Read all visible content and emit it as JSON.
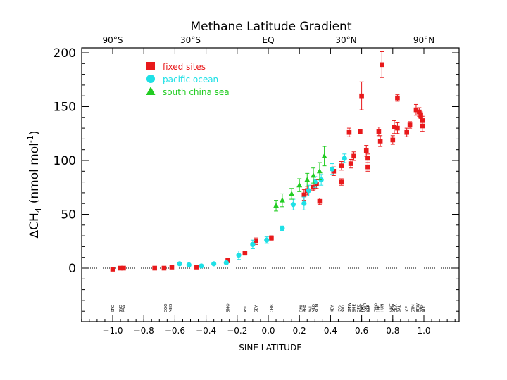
{
  "chart_data": {
    "type": "scatter",
    "title": "Methane Latitude Gradient",
    "xlabel": "SINE LATITUDE",
    "ylabel_main": "ΔCH",
    "ylabel_sub": "4",
    "ylabel_unit": "(nmol mol",
    "ylabel_exp": "-1",
    "ylabel_close": ")",
    "xlim": [
      -1.2,
      1.2
    ],
    "ylim": [
      -50,
      200
    ],
    "x_ticks": [
      {
        "value": -1.0,
        "label": "−1.0"
      },
      {
        "value": -0.8,
        "label": "−0.8"
      },
      {
        "value": -0.6,
        "label": "−0.6"
      },
      {
        "value": -0.4,
        "label": "−0.4"
      },
      {
        "value": -0.2,
        "label": "−0.2"
      },
      {
        "value": 0.0,
        "label": "0.0"
      },
      {
        "value": 0.2,
        "label": "0.2"
      },
      {
        "value": 0.4,
        "label": "0.4"
      },
      {
        "value": 0.6,
        "label": "0.6"
      },
      {
        "value": 0.8,
        "label": "0.8"
      },
      {
        "value": 1.0,
        "label": "1.0"
      }
    ],
    "y_ticks": [
      {
        "value": 0,
        "label": "0"
      },
      {
        "value": 50,
        "label": "50"
      },
      {
        "value": 100,
        "label": "100"
      },
      {
        "value": 150,
        "label": "150"
      },
      {
        "value": 200,
        "label": "200"
      }
    ],
    "top_ticks": [
      {
        "value": -1.0,
        "label": "90°S"
      },
      {
        "value": -0.5,
        "label": "30°S"
      },
      {
        "value": 0.0,
        "label": "EQ"
      },
      {
        "value": 0.5,
        "label": "30°N"
      },
      {
        "value": 1.0,
        "label": "90°N"
      }
    ],
    "zero_line": true,
    "legend_position": "top-left",
    "series": [
      {
        "name": "fixed sites",
        "marker": "square",
        "color": "#e8191b",
        "points": [
          {
            "x": -1.0,
            "y": -1,
            "err": 0
          },
          {
            "x": -0.95,
            "y": 0,
            "err": 0
          },
          {
            "x": -0.93,
            "y": 0,
            "err": 0
          },
          {
            "x": -0.73,
            "y": 0,
            "err": 0
          },
          {
            "x": -0.67,
            "y": 0,
            "err": 0
          },
          {
            "x": -0.62,
            "y": 1,
            "err": 0
          },
          {
            "x": -0.46,
            "y": 1,
            "err": 0
          },
          {
            "x": -0.26,
            "y": 7,
            "err": 2
          },
          {
            "x": -0.15,
            "y": 14,
            "err": 2
          },
          {
            "x": -0.08,
            "y": 25,
            "err": 3
          },
          {
            "x": 0.02,
            "y": 28,
            "err": 2
          },
          {
            "x": 0.23,
            "y": 68,
            "err": 5
          },
          {
            "x": 0.25,
            "y": 72,
            "err": 4
          },
          {
            "x": 0.29,
            "y": 75,
            "err": 3
          },
          {
            "x": 0.31,
            "y": 78,
            "err": 4
          },
          {
            "x": 0.33,
            "y": 62,
            "err": 3
          },
          {
            "x": 0.42,
            "y": 90,
            "err": 4
          },
          {
            "x": 0.47,
            "y": 80,
            "err": 3
          },
          {
            "x": 0.47,
            "y": 95,
            "err": 4
          },
          {
            "x": 0.52,
            "y": 126,
            "err": 4
          },
          {
            "x": 0.53,
            "y": 97,
            "err": 4
          },
          {
            "x": 0.55,
            "y": 104,
            "err": 4
          },
          {
            "x": 0.59,
            "y": 127,
            "err": 2
          },
          {
            "x": 0.6,
            "y": 160,
            "err": 13
          },
          {
            "x": 0.63,
            "y": 109,
            "err": 5
          },
          {
            "x": 0.64,
            "y": 102,
            "err": 4
          },
          {
            "x": 0.64,
            "y": 94,
            "err": 4
          },
          {
            "x": 0.71,
            "y": 127,
            "err": 4
          },
          {
            "x": 0.72,
            "y": 118,
            "err": 5
          },
          {
            "x": 0.73,
            "y": 189,
            "err": 12
          },
          {
            "x": 0.8,
            "y": 119,
            "err": 4
          },
          {
            "x": 0.81,
            "y": 131,
            "err": 6
          },
          {
            "x": 0.83,
            "y": 130,
            "err": 5
          },
          {
            "x": 0.83,
            "y": 158,
            "err": 3
          },
          {
            "x": 0.89,
            "y": 126,
            "err": 4
          },
          {
            "x": 0.91,
            "y": 133,
            "err": 3
          },
          {
            "x": 0.95,
            "y": 147,
            "err": 5
          },
          {
            "x": 0.97,
            "y": 145,
            "err": 4
          },
          {
            "x": 0.98,
            "y": 142,
            "err": 3
          },
          {
            "x": 0.99,
            "y": 137,
            "err": 4
          },
          {
            "x": 0.99,
            "y": 132,
            "err": 5
          }
        ]
      },
      {
        "name": "pacific ocean",
        "marker": "circle",
        "color": "#1ee0e6",
        "points": [
          {
            "x": -0.57,
            "y": 4,
            "err": 0
          },
          {
            "x": -0.51,
            "y": 3,
            "err": 0
          },
          {
            "x": -0.43,
            "y": 2,
            "err": 0
          },
          {
            "x": -0.35,
            "y": 4,
            "err": 0
          },
          {
            "x": -0.27,
            "y": 5,
            "err": 0
          },
          {
            "x": -0.19,
            "y": 12,
            "err": 4
          },
          {
            "x": -0.1,
            "y": 22,
            "err": 4
          },
          {
            "x": -0.01,
            "y": 26,
            "err": 3
          },
          {
            "x": 0.09,
            "y": 37,
            "err": 2
          },
          {
            "x": 0.16,
            "y": 59,
            "err": 5
          },
          {
            "x": 0.23,
            "y": 60,
            "err": 6
          },
          {
            "x": 0.26,
            "y": 72,
            "err": 5
          },
          {
            "x": 0.3,
            "y": 80,
            "err": 5
          },
          {
            "x": 0.34,
            "y": 82,
            "err": 5
          },
          {
            "x": 0.41,
            "y": 92,
            "err": 5
          },
          {
            "x": 0.49,
            "y": 102,
            "err": 4
          }
        ]
      },
      {
        "name": "south china sea",
        "marker": "triangle",
        "color": "#22cc22",
        "points": [
          {
            "x": 0.05,
            "y": 58,
            "err": 5
          },
          {
            "x": 0.09,
            "y": 63,
            "err": 6
          },
          {
            "x": 0.15,
            "y": 69,
            "err": 5
          },
          {
            "x": 0.2,
            "y": 77,
            "err": 6
          },
          {
            "x": 0.25,
            "y": 82,
            "err": 6
          },
          {
            "x": 0.29,
            "y": 86,
            "err": 7
          },
          {
            "x": 0.33,
            "y": 90,
            "err": 8
          },
          {
            "x": 0.36,
            "y": 104,
            "err": 9
          }
        ]
      }
    ],
    "site_labels": [
      {
        "x": -1.0,
        "label": "SPO"
      },
      {
        "x": -0.95,
        "label": "SYO"
      },
      {
        "x": -0.93,
        "label": "PSA"
      },
      {
        "x": -0.66,
        "label": "CGO"
      },
      {
        "x": -0.63,
        "label": "MHS"
      },
      {
        "x": -0.26,
        "label": "SMO"
      },
      {
        "x": -0.15,
        "label": "ASC"
      },
      {
        "x": -0.08,
        "label": "SEY"
      },
      {
        "x": 0.02,
        "label": "CHR"
      },
      {
        "x": 0.21,
        "label": "GMI"
      },
      {
        "x": 0.23,
        "label": "RPB"
      },
      {
        "x": 0.27,
        "label": "AVI"
      },
      {
        "x": 0.29,
        "label": "MLO"
      },
      {
        "x": 0.31,
        "label": "KUM"
      },
      {
        "x": 0.41,
        "label": "KEY"
      },
      {
        "x": 0.46,
        "label": "IZO"
      },
      {
        "x": 0.48,
        "label": "MID"
      },
      {
        "x": 0.52,
        "label": "BMW"
      },
      {
        "x": 0.55,
        "label": "BME"
      },
      {
        "x": 0.58,
        "label": "QPC"
      },
      {
        "x": 0.6,
        "label": "GOZ"
      },
      {
        "x": 0.6,
        "label": "TAP"
      },
      {
        "x": 0.62,
        "label": "NWR"
      },
      {
        "x": 0.64,
        "label": "UTA"
      },
      {
        "x": 0.64,
        "label": "AZR"
      },
      {
        "x": 0.69,
        "label": "CMO"
      },
      {
        "x": 0.71,
        "label": "LEF"
      },
      {
        "x": 0.73,
        "label": "HUN"
      },
      {
        "x": 0.79,
        "label": "MHT"
      },
      {
        "x": 0.8,
        "label": "SHM"
      },
      {
        "x": 0.82,
        "label": "CBA"
      },
      {
        "x": 0.84,
        "label": "BAL"
      },
      {
        "x": 0.89,
        "label": "ICE"
      },
      {
        "x": 0.93,
        "label": "STM"
      },
      {
        "x": 0.96,
        "label": "BRW"
      },
      {
        "x": 0.98,
        "label": "MBC"
      },
      {
        "x": 1.0,
        "label": "ALT"
      }
    ]
  }
}
